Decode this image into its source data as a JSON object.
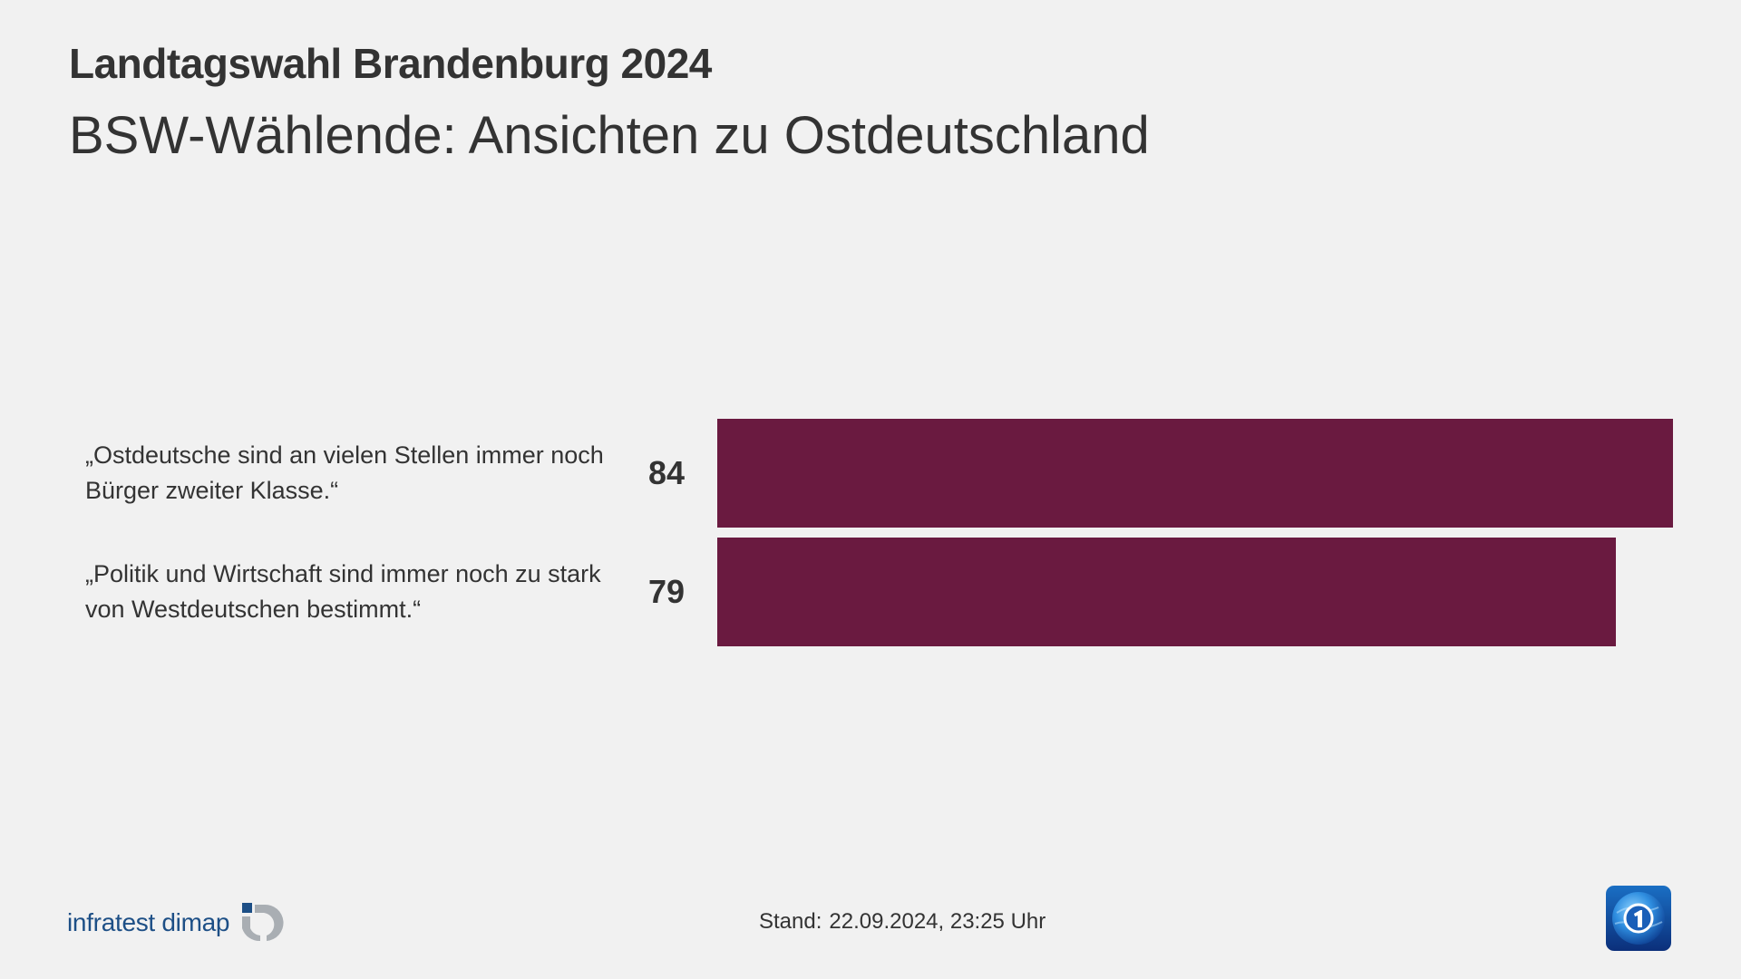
{
  "header": {
    "title": "Landtagswahl Brandenburg 2024",
    "subtitle": "BSW-Wählende: Ansichten zu Ostdeutschland"
  },
  "rows": [
    {
      "label": "„Ostdeutsche sind an vielen Stellen immer noch Bürger zweiter Klasse.“",
      "value": "84"
    },
    {
      "label": "„Politik und Wirtschaft sind immer noch zu stark von Westdeutschen bestimmt.“",
      "value": "79"
    }
  ],
  "footer": {
    "source_logo_text": "infratest dimap",
    "stand_label": "Stand:",
    "stand_value": "22.09.2024, 23:25 Uhr",
    "broadcaster_logo": "tagesschau-icon"
  },
  "colors": {
    "background": "#f1f1f1",
    "bar": "#6a1a40",
    "text": "#333333",
    "source_logo_blue": "#1d4f86",
    "source_logo_gray": "#a9aeb3"
  },
  "chart_data": {
    "type": "bar",
    "orientation": "horizontal",
    "title": "Landtagswahl Brandenburg 2024",
    "subtitle": "BSW-Wählende: Ansichten zu Ostdeutschland",
    "categories": [
      "„Ostdeutsche sind an vielen Stellen immer noch Bürger zweiter Klasse.“",
      "„Politik und Wirtschaft sind immer noch zu stark von Westdeutschen bestimmt.“"
    ],
    "values": [
      84,
      79
    ],
    "unit": "%",
    "xlabel": "",
    "ylabel": "",
    "xlim": [
      0,
      100
    ],
    "grid": false,
    "legend": null,
    "color": "#6a1a40",
    "annotations": [
      "Stand: 22.09.2024, 23:25 Uhr"
    ]
  }
}
